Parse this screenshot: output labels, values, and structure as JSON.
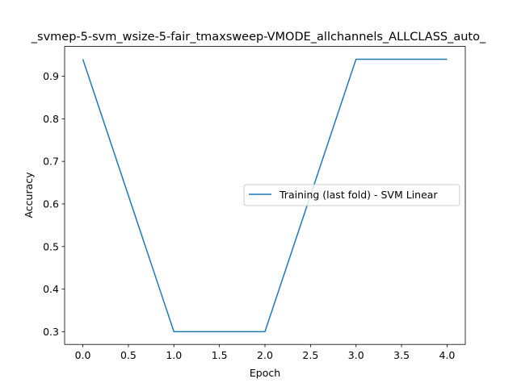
{
  "chart_data": {
    "type": "line",
    "title": "_svmep-5-svm_wsize-5-fair_tmaxsweep-VMODE_allchannels_ALLCLASS_auto_",
    "xlabel": "Epoch",
    "ylabel": "Accuracy",
    "xlim": [
      -0.2,
      4.2
    ],
    "ylim": [
      0.27,
      0.97
    ],
    "xticks": [
      0.0,
      0.5,
      1.0,
      1.5,
      2.0,
      2.5,
      3.0,
      3.5,
      4.0
    ],
    "xtick_labels": [
      "0.0",
      "0.5",
      "1.0",
      "1.5",
      "2.0",
      "2.5",
      "3.0",
      "3.5",
      "4.0"
    ],
    "yticks": [
      0.3,
      0.4,
      0.5,
      0.6,
      0.7,
      0.8,
      0.9
    ],
    "ytick_labels": [
      "0.3",
      "0.4",
      "0.5",
      "0.6",
      "0.7",
      "0.8",
      "0.9"
    ],
    "grid": false,
    "legend_position": "center-right",
    "series": [
      {
        "name": "Training (last fold) - SVM Linear",
        "color": "#1f77b4",
        "x": [
          0,
          1,
          2,
          3,
          4
        ],
        "y": [
          0.94,
          0.3,
          0.3,
          0.94,
          0.94
        ]
      }
    ]
  }
}
